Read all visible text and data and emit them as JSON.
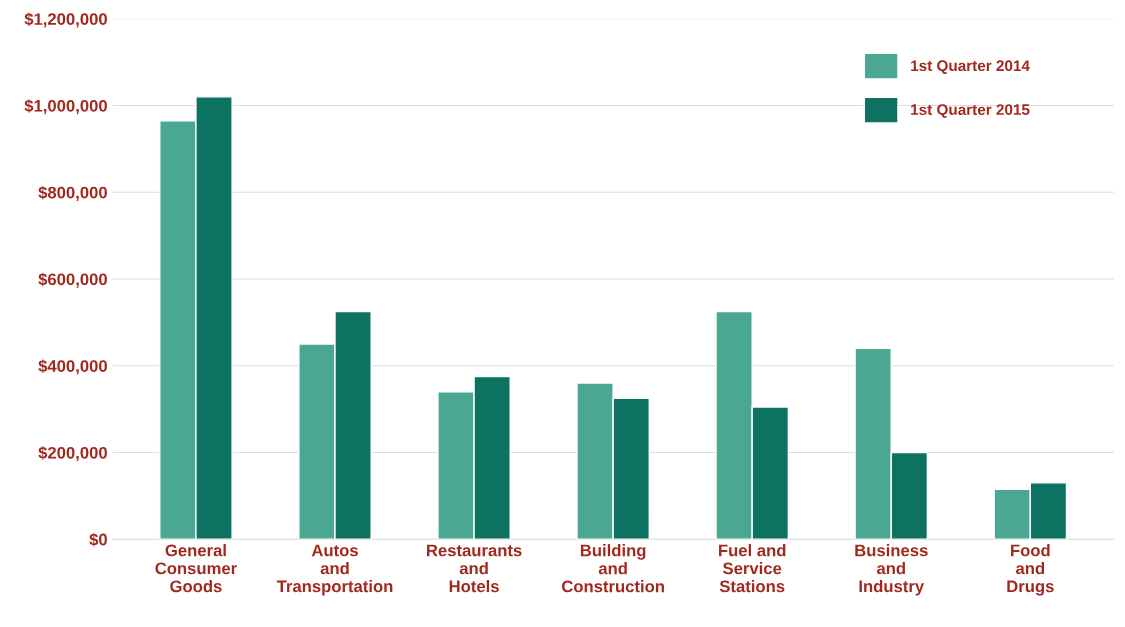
{
  "chart_data": {
    "type": "bar",
    "categories": [
      "General\nConsumer\nGoods",
      "Autos\nand\nTransportation",
      "Restaurants\nand\nHotels",
      "Building\nand\nConstruction",
      "Fuel and\nService\nStations",
      "Business\nand\nIndustry",
      "Food\nand\nDrugs"
    ],
    "series": [
      {
        "name": "1st Quarter 2014",
        "color": "#4aa892",
        "values": [
          965000,
          450000,
          340000,
          360000,
          525000,
          440000,
          115000
        ]
      },
      {
        "name": "1st Quarter 2015",
        "color": "#0e7263",
        "values": [
          1020000,
          525000,
          375000,
          325000,
          305000,
          200000,
          130000
        ]
      }
    ],
    "ylim": [
      0,
      1200000
    ],
    "yticks": [
      {
        "value": 0,
        "label": "$0"
      },
      {
        "value": 200000,
        "label": "$200,000"
      },
      {
        "value": 400000,
        "label": "$400,000"
      },
      {
        "value": 600000,
        "label": "$600,000"
      },
      {
        "value": 800000,
        "label": "$800,000"
      },
      {
        "value": 1000000,
        "label": "$1,000,000"
      },
      {
        "value": 1200000,
        "label": "$1,200,000"
      }
    ],
    "grid": "y",
    "legend": "top right"
  }
}
